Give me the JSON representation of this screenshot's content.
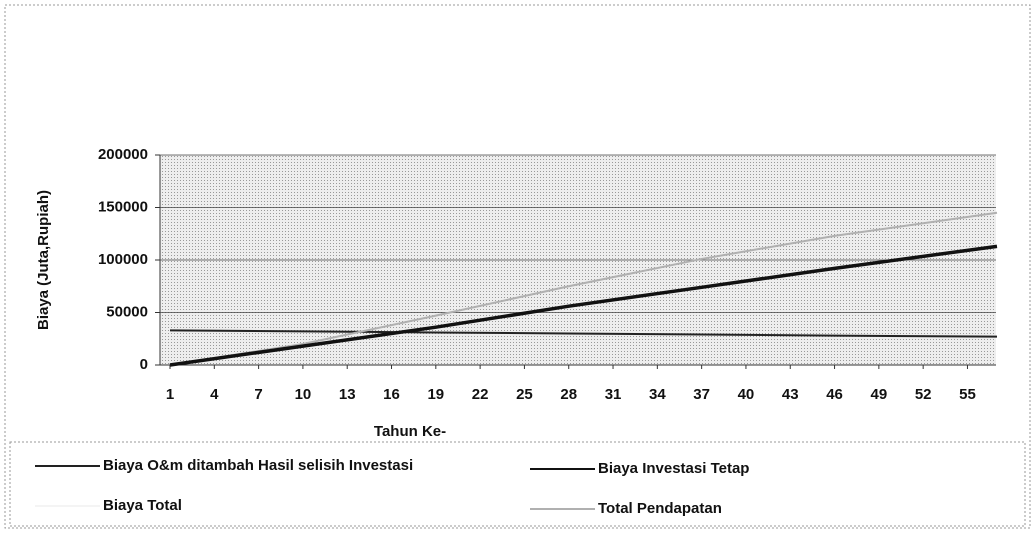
{
  "chart_data": {
    "type": "line",
    "x_label": "Tahun Ke-",
    "y_label": "Biaya (Juta,Rupiah)",
    "x": [
      1,
      10,
      19,
      28,
      37,
      46,
      57
    ],
    "xlim": [
      1,
      57
    ],
    "xticks": [
      1,
      4,
      7,
      10,
      13,
      16,
      19,
      22,
      25,
      28,
      31,
      34,
      37,
      40,
      43,
      46,
      49,
      52,
      55
    ],
    "ylim": [
      0,
      200000
    ],
    "yticks": [
      0,
      50000,
      100000,
      150000,
      200000
    ],
    "grid": true,
    "series": [
      {
        "name": "Biaya O&m ditambah Hasil selisih Investasi",
        "color": "#222222",
        "values": [
          33000,
          32000,
          31000,
          30000,
          29000,
          28000,
          27000
        ]
      },
      {
        "name": "Biaya Investasi Tetap",
        "color": "#111111",
        "values": [
          0,
          18000,
          36000,
          56000,
          74000,
          92000,
          113000
        ]
      },
      {
        "name": "Biaya Total",
        "color": "#f4f4f4",
        "values": [
          0,
          18000,
          36000,
          56000,
          74000,
          92000,
          113000
        ]
      },
      {
        "name": "Total Pendapatan",
        "color": "#b0b0b0",
        "values": [
          0,
          20000,
          47000,
          75000,
          101000,
          123000,
          145000
        ]
      }
    ]
  }
}
